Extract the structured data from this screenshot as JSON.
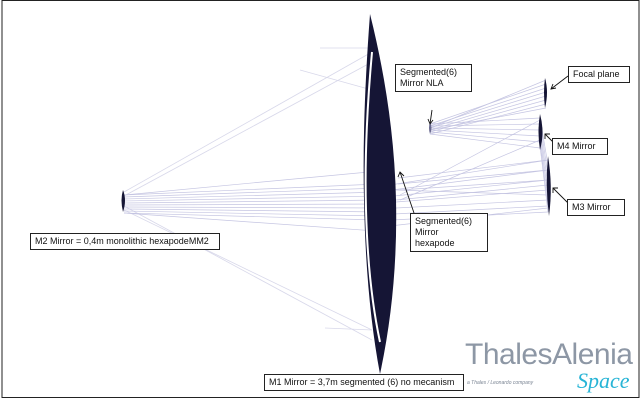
{
  "labels": {
    "m2_mirror": "M2 Mirror = 0,4m monolithic hexapodeMM2",
    "m1_mirror": "M1 Mirror = 3,7m segmented (6) no mecanism",
    "segmented_nla": [
      "Segmented(6)",
      "Mirror NLA"
    ],
    "segmented_hexapode": [
      "Segmented(6)",
      "Mirror",
      "hexapode"
    ],
    "focal_plane": "Focal plane",
    "m4_mirror": "M4 Mirror",
    "m3_mirror": "M3 Mirror"
  },
  "logo": {
    "main": "ThalesAlenia",
    "sub": "a Thales / Leonardo company",
    "space": "Space"
  },
  "colors": {
    "mirror": "#151535",
    "ray": "#c5c5e2",
    "logo_gray": "#8d97a5",
    "logo_blue": "#27b4d6"
  }
}
